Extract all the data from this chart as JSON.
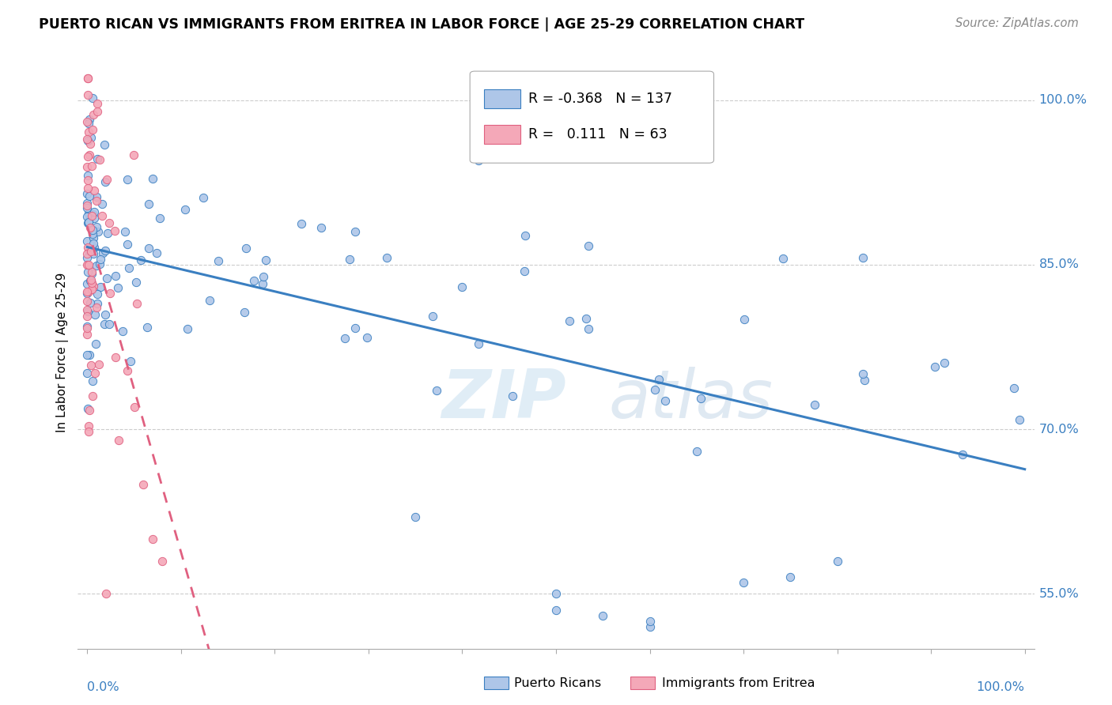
{
  "title": "PUERTO RICAN VS IMMIGRANTS FROM ERITREA IN LABOR FORCE | AGE 25-29 CORRELATION CHART",
  "source": "Source: ZipAtlas.com",
  "ylabel": "In Labor Force | Age 25-29",
  "ytick_labels": [
    "55.0%",
    "70.0%",
    "85.0%",
    "100.0%"
  ],
  "ytick_values": [
    0.55,
    0.7,
    0.85,
    1.0
  ],
  "blue_R": -0.368,
  "blue_N": 137,
  "pink_R": 0.111,
  "pink_N": 63,
  "blue_color": "#aec6e8",
  "pink_color": "#f4a8b8",
  "blue_line_color": "#3a7fc1",
  "pink_line_color": "#e06080",
  "legend_label_blue": "Puerto Ricans",
  "legend_label_pink": "Immigrants from Eritrea",
  "watermark_zip": "ZIP",
  "watermark_atlas": "atlas",
  "xlim": [
    -0.01,
    1.01
  ],
  "ylim": [
    0.5,
    1.04
  ]
}
